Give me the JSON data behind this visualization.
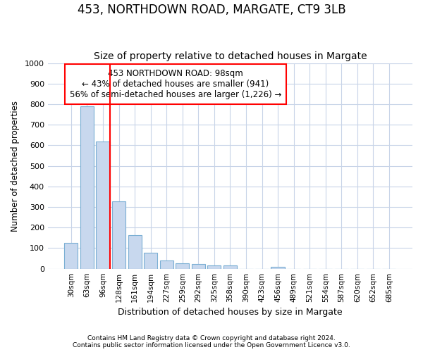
{
  "title_line1": "453, NORTHDOWN ROAD, MARGATE, CT9 3LB",
  "title_line2": "Size of property relative to detached houses in Margate",
  "xlabel": "Distribution of detached houses by size in Margate",
  "ylabel": "Number of detached properties",
  "categories": [
    "30sqm",
    "63sqm",
    "96sqm",
    "128sqm",
    "161sqm",
    "194sqm",
    "227sqm",
    "259sqm",
    "292sqm",
    "325sqm",
    "358sqm",
    "390sqm",
    "423sqm",
    "456sqm",
    "489sqm",
    "521sqm",
    "554sqm",
    "587sqm",
    "620sqm",
    "652sqm",
    "685sqm"
  ],
  "values": [
    125,
    790,
    620,
    328,
    162,
    78,
    40,
    28,
    22,
    15,
    15,
    0,
    0,
    8,
    0,
    0,
    0,
    0,
    0,
    0,
    0
  ],
  "bar_color": "#c8d8ee",
  "bar_edge_color": "#7bafd4",
  "red_line_index": 2,
  "annotation_text": "453 NORTHDOWN ROAD: 98sqm\n← 43% of detached houses are smaller (941)\n56% of semi-detached houses are larger (1,226) →",
  "annotation_box_color": "white",
  "annotation_border_color": "red",
  "ylim": [
    0,
    1000
  ],
  "yticks": [
    0,
    100,
    200,
    300,
    400,
    500,
    600,
    700,
    800,
    900,
    1000
  ],
  "footnote1": "Contains HM Land Registry data © Crown copyright and database right 2024.",
  "footnote2": "Contains public sector information licensed under the Open Government Licence v3.0.",
  "background_color": "#ffffff",
  "grid_color": "#c8d4e8",
  "title_fontsize": 12,
  "subtitle_fontsize": 10,
  "title_fontweight": "normal"
}
